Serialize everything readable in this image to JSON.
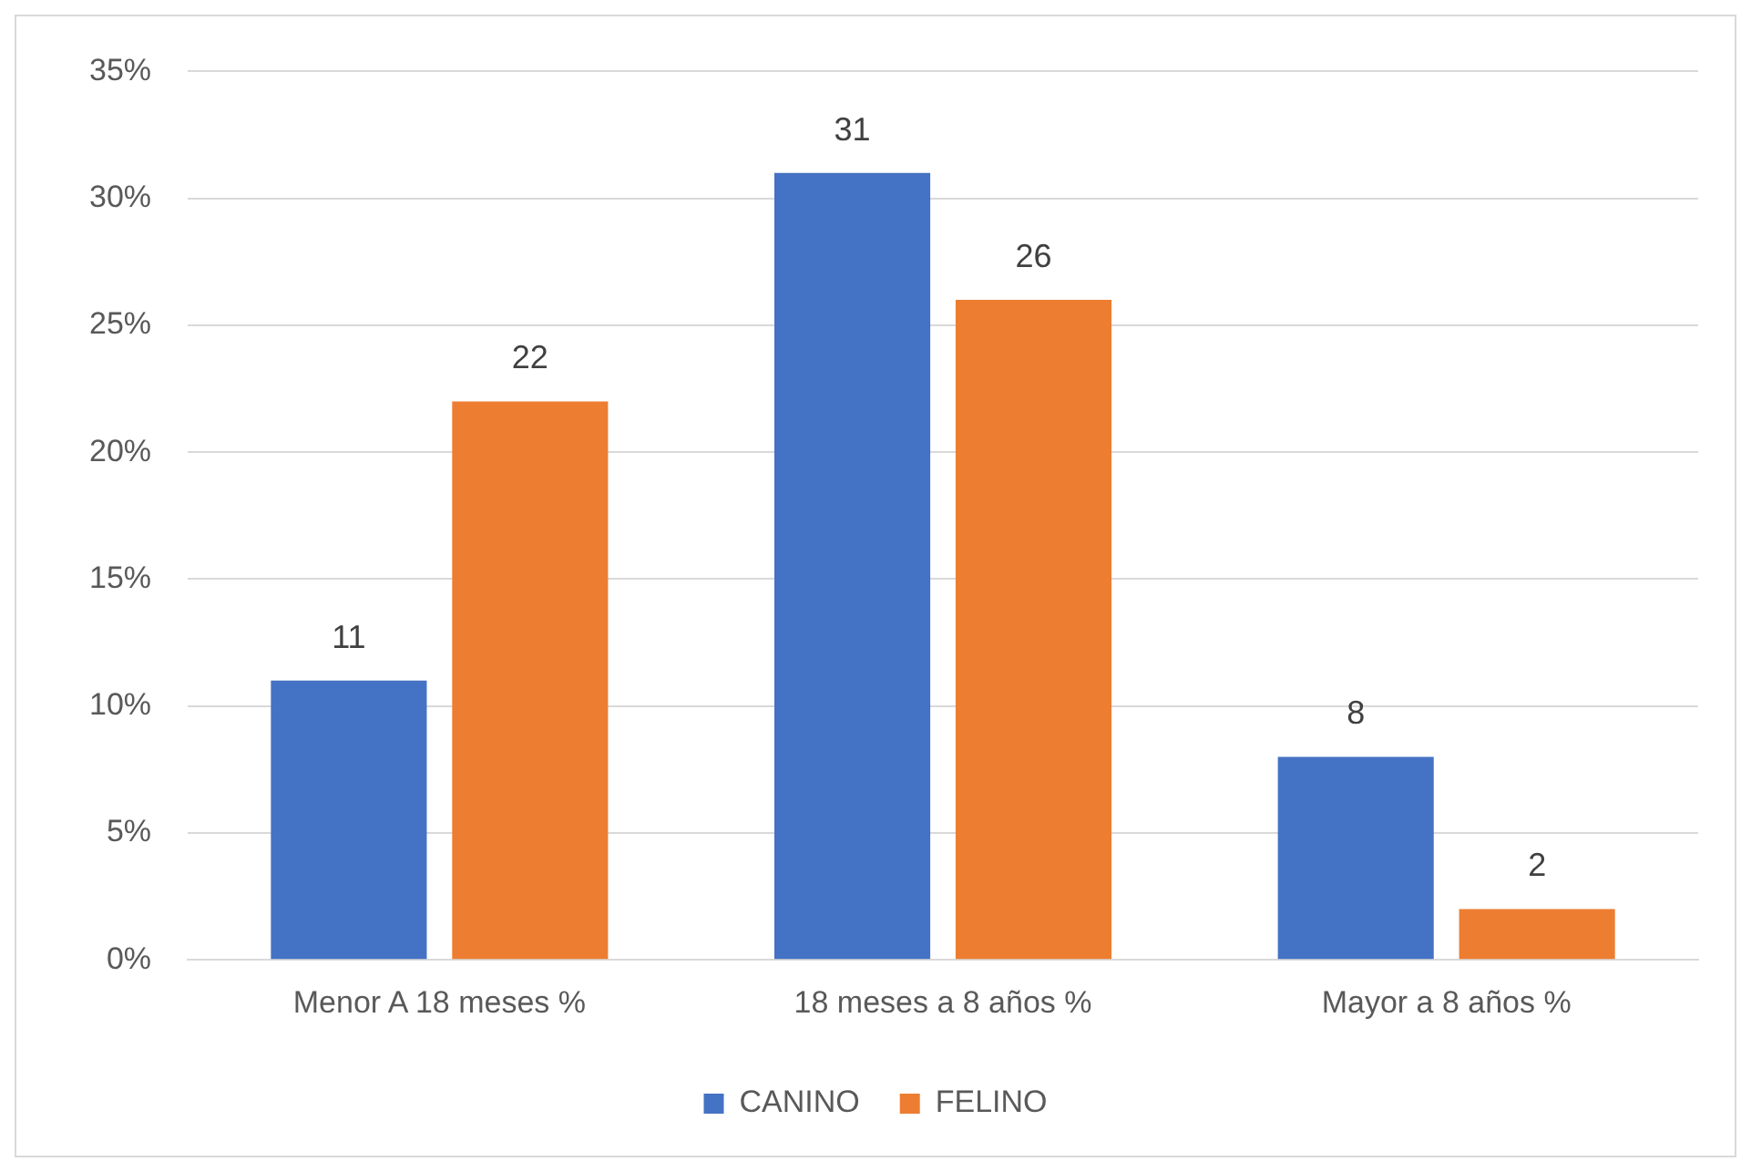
{
  "chart_data": {
    "type": "bar",
    "categories": [
      "Menor A 18 meses %",
      "18 meses a 8 años %",
      "Mayor a 8 años %"
    ],
    "series": [
      {
        "name": "CANINO",
        "color": "#4472c4",
        "values": [
          11,
          31,
          8
        ]
      },
      {
        "name": "FELINO",
        "color": "#ed7d31",
        "values": [
          22,
          26,
          2
        ]
      }
    ],
    "ylim": [
      0,
      35
    ],
    "yticks": [
      {
        "value": 0,
        "label": "0%"
      },
      {
        "value": 5,
        "label": "5%"
      },
      {
        "value": 10,
        "label": "10%"
      },
      {
        "value": 15,
        "label": "15%"
      },
      {
        "value": 20,
        "label": "20%"
      },
      {
        "value": 25,
        "label": "25%"
      },
      {
        "value": 30,
        "label": "30%"
      },
      {
        "value": 35,
        "label": "35%"
      }
    ],
    "grid": "y",
    "legend": "bottom",
    "data_labels": true
  }
}
